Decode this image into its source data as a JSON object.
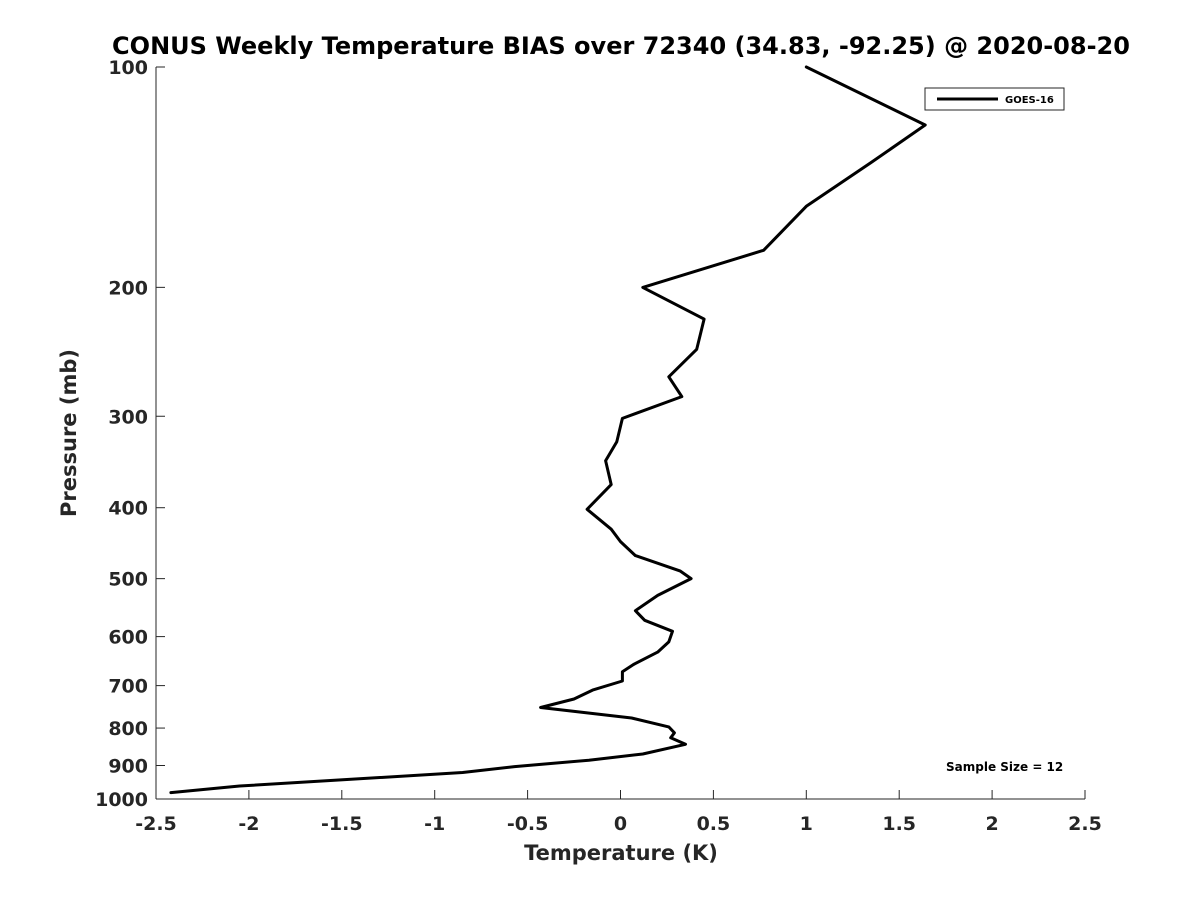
{
  "chart_data": {
    "type": "line",
    "title": "CONUS Weekly Temperature BIAS over 72340 (34.83, -92.25) @ 2020-08-20",
    "xlabel": "Temperature (K)",
    "ylabel": "Pressure (mb)",
    "xlim": [
      -2.5,
      2.5
    ],
    "ylim": [
      100,
      1000
    ],
    "y_scale": "log",
    "y_reversed": true,
    "grid": false,
    "legend_position": "top-right",
    "x_ticks": [
      -2.5,
      -2,
      -1.5,
      -1,
      -0.5,
      0,
      0.5,
      1,
      1.5,
      2,
      2.5
    ],
    "x_tick_labels": [
      "-2.5",
      "-2",
      "-1.5",
      "-1",
      "-0.5",
      "0",
      "0.5",
      "1",
      "1.5",
      "2",
      "2.5"
    ],
    "y_ticks": [
      100,
      200,
      300,
      400,
      500,
      600,
      700,
      800,
      900,
      1000
    ],
    "y_tick_labels": [
      "100",
      "200",
      "300",
      "400",
      "500",
      "600",
      "700",
      "800",
      "900",
      "1000"
    ],
    "annotation": "Sample Size = 12",
    "series": [
      {
        "name": "GOES-16",
        "color": "#000000",
        "points": [
          {
            "t": 1.0,
            "p": 100
          },
          {
            "t": 1.64,
            "p": 120
          },
          {
            "t": 1.35,
            "p": 135
          },
          {
            "t": 1.0,
            "p": 155
          },
          {
            "t": 0.77,
            "p": 178
          },
          {
            "t": 0.12,
            "p": 200
          },
          {
            "t": 0.45,
            "p": 221
          },
          {
            "t": 0.41,
            "p": 243
          },
          {
            "t": 0.26,
            "p": 265
          },
          {
            "t": 0.33,
            "p": 282
          },
          {
            "t": 0.01,
            "p": 302
          },
          {
            "t": -0.02,
            "p": 325
          },
          {
            "t": -0.08,
            "p": 345
          },
          {
            "t": -0.05,
            "p": 372
          },
          {
            "t": -0.18,
            "p": 402
          },
          {
            "t": -0.05,
            "p": 428
          },
          {
            "t": 0.0,
            "p": 445
          },
          {
            "t": 0.08,
            "p": 465
          },
          {
            "t": 0.32,
            "p": 488
          },
          {
            "t": 0.38,
            "p": 500
          },
          {
            "t": 0.2,
            "p": 527
          },
          {
            "t": 0.08,
            "p": 553
          },
          {
            "t": 0.13,
            "p": 570
          },
          {
            "t": 0.28,
            "p": 590
          },
          {
            "t": 0.26,
            "p": 610
          },
          {
            "t": 0.2,
            "p": 630
          },
          {
            "t": 0.07,
            "p": 655
          },
          {
            "t": 0.01,
            "p": 670
          },
          {
            "t": 0.01,
            "p": 690
          },
          {
            "t": -0.15,
            "p": 710
          },
          {
            "t": -0.25,
            "p": 730
          },
          {
            "t": -0.43,
            "p": 750
          },
          {
            "t": 0.06,
            "p": 775
          },
          {
            "t": 0.26,
            "p": 797
          },
          {
            "t": 0.29,
            "p": 812
          },
          {
            "t": 0.27,
            "p": 825
          },
          {
            "t": 0.35,
            "p": 842
          },
          {
            "t": 0.12,
            "p": 868
          },
          {
            "t": -0.17,
            "p": 885
          },
          {
            "t": -0.57,
            "p": 903
          },
          {
            "t": -0.85,
            "p": 920
          },
          {
            "t": -1.45,
            "p": 940
          },
          {
            "t": -2.05,
            "p": 960
          },
          {
            "t": -2.42,
            "p": 980
          }
        ]
      }
    ]
  }
}
